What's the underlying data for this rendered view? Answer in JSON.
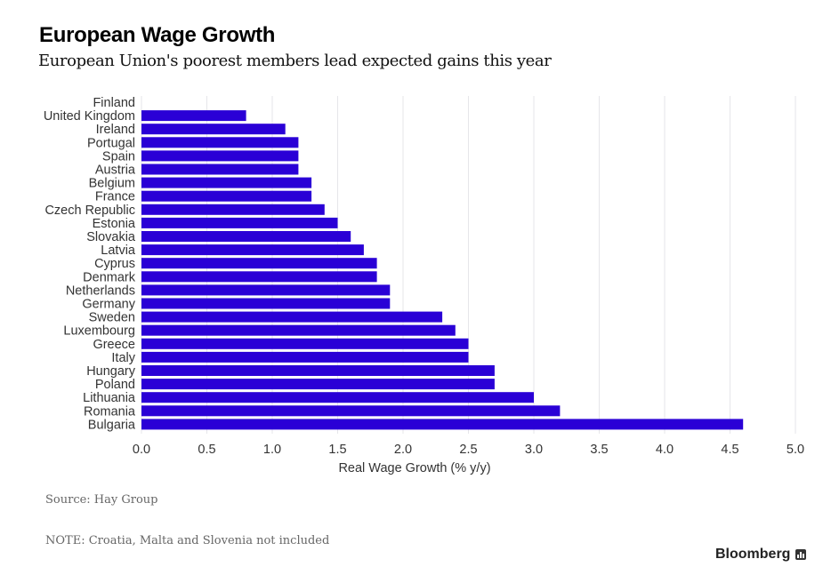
{
  "header": {
    "title": "European Wage Growth",
    "subtitle": "European Union's poorest members lead expected gains this year"
  },
  "footer": {
    "source": "Source: Hay Group",
    "note": "NOTE: Croatia, Malta and Slovenia not included",
    "brand": "Bloomberg"
  },
  "colors": {
    "bar": "#2a00d6",
    "grid": "#e6e6ea"
  },
  "chart_data": {
    "type": "bar",
    "orientation": "horizontal",
    "title": "European Wage Growth",
    "subtitle": "European Union's poorest members lead expected gains this year",
    "xlabel": "Real Wage Growth (% y/y)",
    "ylabel": "",
    "xlim": [
      0,
      5
    ],
    "xticks": [
      "0.0",
      "0.5",
      "1.0",
      "1.5",
      "2.0",
      "2.5",
      "3.0",
      "3.5",
      "4.0",
      "4.5",
      "5.0"
    ],
    "grid": true,
    "categories": [
      "Finland",
      "United Kingdom",
      "Ireland",
      "Portugal",
      "Spain",
      "Austria",
      "Belgium",
      "France",
      "Czech Republic",
      "Estonia",
      "Slovakia",
      "Latvia",
      "Cyprus",
      "Denmark",
      "Netherlands",
      "Germany",
      "Sweden",
      "Luxembourg",
      "Greece",
      "Italy",
      "Hungary",
      "Poland",
      "Lithuania",
      "Romania",
      "Bulgaria"
    ],
    "values": [
      0.0,
      0.8,
      1.1,
      1.2,
      1.2,
      1.2,
      1.3,
      1.3,
      1.4,
      1.5,
      1.6,
      1.7,
      1.8,
      1.8,
      1.9,
      1.9,
      2.3,
      2.4,
      2.5,
      2.5,
      2.7,
      2.7,
      3.0,
      3.2,
      4.6
    ]
  }
}
